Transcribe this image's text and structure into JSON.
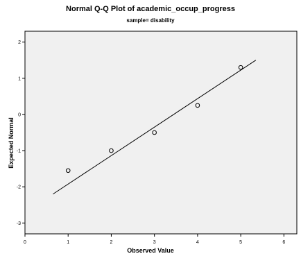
{
  "chart_data": {
    "type": "scatter",
    "title": "Normal Q-Q Plot of academic_occup_progress",
    "subtitle": "sample= disability",
    "xlabel": "Observed Value",
    "ylabel": "Expected Normal",
    "xlim": [
      0,
      6.3
    ],
    "ylim": [
      -3.3,
      2.3
    ],
    "x_ticks": [
      0,
      1,
      2,
      3,
      4,
      5,
      6
    ],
    "y_ticks": [
      -3,
      -2,
      -1,
      0,
      1,
      2
    ],
    "x_tick_labels": [
      "0",
      "1",
      "2",
      "3",
      "4",
      "5",
      "6"
    ],
    "y_tick_labels": [
      "-3",
      "-2",
      "-1",
      "0",
      "1",
      "2"
    ],
    "points": [
      {
        "x": 1,
        "y": -1.55
      },
      {
        "x": 2,
        "y": -1.0
      },
      {
        "x": 3,
        "y": -0.5
      },
      {
        "x": 4,
        "y": 0.25
      },
      {
        "x": 5,
        "y": 1.3
      }
    ],
    "reference_line": {
      "x": [
        0.65,
        5.35
      ],
      "y": [
        -2.2,
        1.5
      ]
    },
    "grid": false,
    "background_color": "#f0f0f0",
    "point_color": "#000000",
    "line_color": "#000000"
  }
}
